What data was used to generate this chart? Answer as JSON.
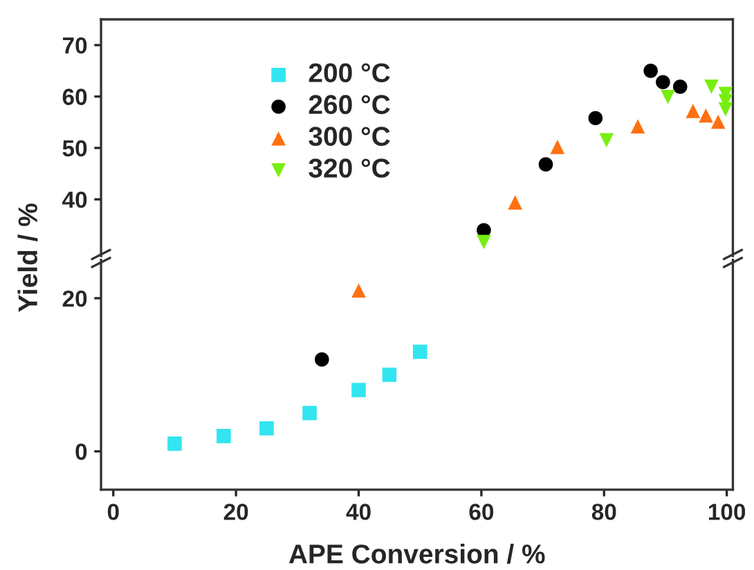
{
  "chart_data": [
    {
      "type": "scatter",
      "xlim": [
        -2,
        101
      ],
      "ylim": [
        29,
        75
      ],
      "yticks": [
        40,
        50,
        60,
        70
      ],
      "tick_labels": "y",
      "ylabel": "Yield / %",
      "legend": "top left",
      "grid": false,
      "series": [
        {
          "name": "200 °C",
          "color": "#33e5f0",
          "marker": "square"
        },
        {
          "name": "260 °C",
          "color": "#000000",
          "marker": "circle",
          "x": [
            60.4,
            70.5,
            78.6,
            87.6,
            89.6,
            92.4
          ],
          "values": [
            34,
            46.8,
            55.8,
            65,
            62.8,
            61.9
          ]
        },
        {
          "name": "300 °C",
          "color": "#ff7010",
          "marker": "triangle",
          "x": [
            65.5,
            72.4,
            85.5,
            94.5,
            96.6,
            98.6
          ],
          "values": [
            39.4,
            50.2,
            54.2,
            57.2,
            56.3,
            55.1
          ]
        },
        {
          "name": "320 °C",
          "color": "#77ee10",
          "marker": "triangle_down",
          "x": [
            60.4,
            80.4,
            90.4,
            97.5,
            99.8,
            99.8,
            99.8
          ],
          "values": [
            31.7,
            51.5,
            59.9,
            61.9,
            60.5,
            59.1,
            57.5
          ]
        }
      ]
    },
    {
      "type": "scatter",
      "xlim": [
        -2,
        101
      ],
      "ylim": [
        -5,
        25
      ],
      "xticks": [
        0,
        20,
        40,
        60,
        80,
        100
      ],
      "yticks": [
        0,
        20
      ],
      "xlabel": "APE Conversion / %",
      "grid": false,
      "series": [
        {
          "color": "#33e5f0",
          "marker": "square",
          "x": [
            10,
            18,
            25,
            32,
            40,
            45,
            50
          ],
          "values": [
            1,
            2,
            3,
            5,
            8,
            10,
            13
          ]
        },
        {
          "color": "#000000",
          "marker": "circle",
          "x": [
            34
          ],
          "values": [
            12
          ]
        },
        {
          "color": "#ff7010",
          "marker": "triangle",
          "x": [
            40
          ],
          "values": [
            21
          ]
        }
      ]
    }
  ]
}
